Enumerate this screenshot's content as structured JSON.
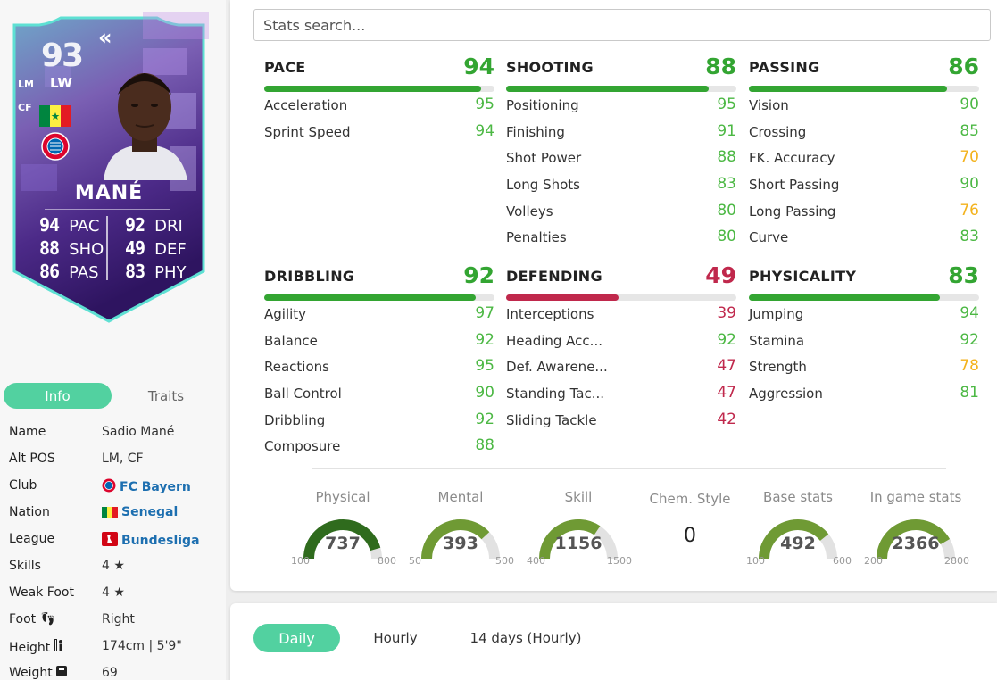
{
  "card": {
    "rating": "93",
    "position": "LW",
    "alt_positions": [
      "LM",
      "CF"
    ],
    "name": "MANÉ",
    "stats_left": [
      {
        "value": "94",
        "label": "PAC"
      },
      {
        "value": "88",
        "label": "SHO"
      },
      {
        "value": "86",
        "label": "PAS"
      }
    ],
    "stats_right": [
      {
        "value": "92",
        "label": "DRI"
      },
      {
        "value": "49",
        "label": "DEF"
      },
      {
        "value": "83",
        "label": "PHY"
      }
    ]
  },
  "tabs": {
    "info": "Info",
    "traits": "Traits"
  },
  "info": [
    {
      "key": "Name",
      "value": "Sadio Mané"
    },
    {
      "key": "Alt POS",
      "value": "LM, CF"
    },
    {
      "key": "Club",
      "value": "FC Bayern",
      "icon": "club-badge-icon"
    },
    {
      "key": "Nation",
      "value": "Senegal",
      "icon": "senegal-flag-icon"
    },
    {
      "key": "League",
      "value": "Bundesliga",
      "icon": "bundesliga-logo-icon"
    },
    {
      "key": "Skills",
      "value": "4 ★"
    },
    {
      "key": "Weak Foot",
      "value": "4 ★"
    },
    {
      "key": "Foot",
      "value": "Right",
      "icon": "footprints-icon"
    },
    {
      "key": "Height",
      "value": "174cm | 5'9\"",
      "icon": "height-icon"
    },
    {
      "key": "Weight",
      "value": "69",
      "icon": "scale-icon"
    }
  ],
  "search": {
    "placeholder": "Stats search..."
  },
  "colors": {
    "green": "#33a532",
    "light_green": "#4cb844",
    "yellow": "#f3b21c",
    "red": "#c0284c",
    "accent": "#52d1a0"
  },
  "categories": [
    {
      "name": "PACE",
      "value": 94,
      "color": "#33a532",
      "subs": [
        {
          "name": "Acceleration",
          "value": 95
        },
        {
          "name": "Sprint Speed",
          "value": 94
        }
      ]
    },
    {
      "name": "SHOOTING",
      "value": 88,
      "color": "#33a532",
      "subs": [
        {
          "name": "Positioning",
          "value": 95
        },
        {
          "name": "Finishing",
          "value": 91
        },
        {
          "name": "Shot Power",
          "value": 88
        },
        {
          "name": "Long Shots",
          "value": 83
        },
        {
          "name": "Volleys",
          "value": 80
        },
        {
          "name": "Penalties",
          "value": 80
        }
      ]
    },
    {
      "name": "PASSING",
      "value": 86,
      "color": "#33a532",
      "subs": [
        {
          "name": "Vision",
          "value": 90
        },
        {
          "name": "Crossing",
          "value": 85
        },
        {
          "name": "FK. Accuracy",
          "value": 70
        },
        {
          "name": "Short Passing",
          "value": 90
        },
        {
          "name": "Long Passing",
          "value": 76
        },
        {
          "name": "Curve",
          "value": 83
        }
      ]
    },
    {
      "name": "DRIBBLING",
      "value": 92,
      "color": "#33a532",
      "subs": [
        {
          "name": "Agility",
          "value": 97
        },
        {
          "name": "Balance",
          "value": 92
        },
        {
          "name": "Reactions",
          "value": 95
        },
        {
          "name": "Ball Control",
          "value": 90
        },
        {
          "name": "Dribbling",
          "value": 92
        },
        {
          "name": "Composure",
          "value": 88
        }
      ]
    },
    {
      "name": "DEFENDING",
      "value": 49,
      "color": "#c0284c",
      "subs": [
        {
          "name": "Interceptions",
          "value": 39
        },
        {
          "name": "Heading Acc...",
          "value": 92
        },
        {
          "name": "Def. Awarene...",
          "value": 47
        },
        {
          "name": "Standing Tac...",
          "value": 47
        },
        {
          "name": "Sliding Tackle",
          "value": 42
        }
      ]
    },
    {
      "name": "PHYSICALITY",
      "value": 83,
      "color": "#33a532",
      "subs": [
        {
          "name": "Jumping",
          "value": 94
        },
        {
          "name": "Stamina",
          "value": 92
        },
        {
          "name": "Strength",
          "value": 78
        },
        {
          "name": "Aggression",
          "value": 81
        }
      ]
    }
  ],
  "gauges": [
    {
      "title": "Physical",
      "value": 737,
      "min": 100,
      "max": 800,
      "color": "#2f6b1d"
    },
    {
      "title": "Mental",
      "value": 393,
      "min": 50,
      "max": 500,
      "color": "#6f9a34"
    },
    {
      "title": "Skill",
      "value": 1156,
      "min": 400,
      "max": 1500,
      "color": "#6f9a34"
    },
    {
      "title": "Base stats",
      "value": 492,
      "min": 100,
      "max": 600,
      "color": "#6f9a34"
    },
    {
      "title": "In game stats",
      "value": 2366,
      "min": 200,
      "max": 2800,
      "color": "#6f9a34"
    }
  ],
  "chem_style": {
    "title": "Chem. Style",
    "value": "0"
  },
  "history_tabs": {
    "daily": "Daily",
    "hourly": "Hourly",
    "fourteen": "14 days (Hourly)"
  }
}
